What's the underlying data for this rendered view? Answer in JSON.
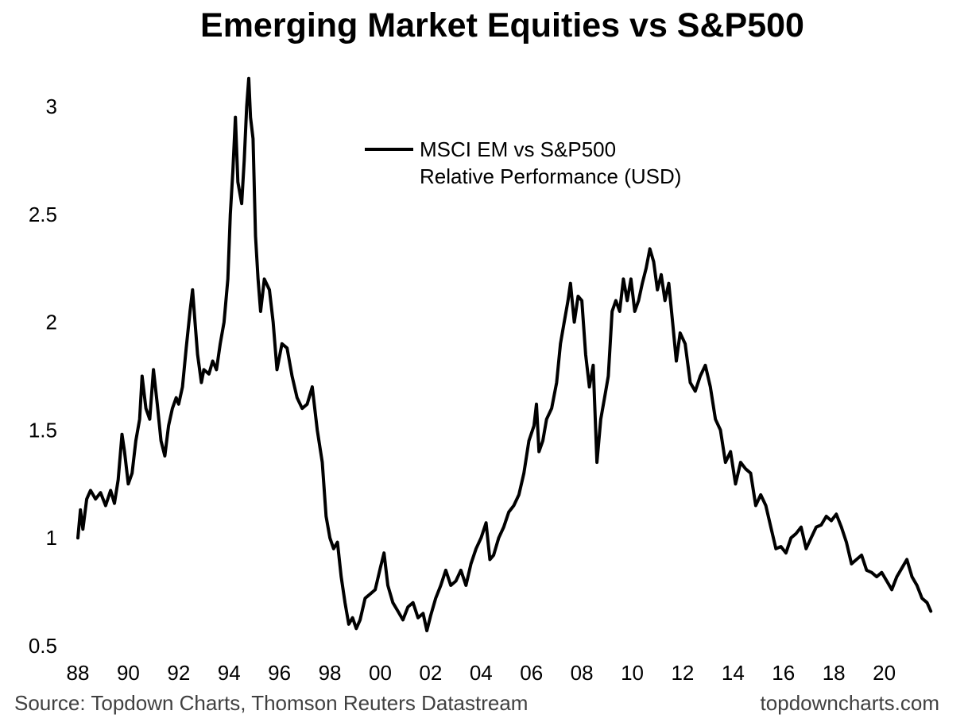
{
  "title": "Emerging Market Equities vs S&P500",
  "footer": {
    "source": "Source: Topdown Charts, Thomson Reuters Datastream",
    "site": "topdowncharts.com"
  },
  "chart_data": {
    "type": "line",
    "title": "Emerging Market Equities vs S&P500",
    "xlabel": "",
    "ylabel": "",
    "xlim": [
      1988,
      2022
    ],
    "ylim": [
      0.5,
      3.2
    ],
    "x_ticks": [
      "88",
      "90",
      "92",
      "94",
      "96",
      "98",
      "00",
      "02",
      "04",
      "06",
      "08",
      "10",
      "12",
      "14",
      "16",
      "18",
      "20"
    ],
    "y_ticks": [
      "0.5",
      "1",
      "1.5",
      "2",
      "2.5",
      "3"
    ],
    "grid": false,
    "legend": {
      "position": "top-center",
      "entries": [
        "MSCI EM vs S&P500",
        "Relative Performance (USD)"
      ]
    },
    "series": [
      {
        "name": "MSCI EM vs S&P500 Relative Performance (USD)",
        "color": "#000000",
        "points": [
          [
            1988.0,
            1.0
          ],
          [
            1988.1,
            1.13
          ],
          [
            1988.2,
            1.04
          ],
          [
            1988.35,
            1.18
          ],
          [
            1988.5,
            1.22
          ],
          [
            1988.7,
            1.18
          ],
          [
            1988.9,
            1.21
          ],
          [
            1989.1,
            1.15
          ],
          [
            1989.3,
            1.22
          ],
          [
            1989.45,
            1.16
          ],
          [
            1989.6,
            1.27
          ],
          [
            1989.75,
            1.48
          ],
          [
            1989.85,
            1.4
          ],
          [
            1990.0,
            1.25
          ],
          [
            1990.15,
            1.3
          ],
          [
            1990.3,
            1.45
          ],
          [
            1990.45,
            1.55
          ],
          [
            1990.55,
            1.75
          ],
          [
            1990.7,
            1.6
          ],
          [
            1990.85,
            1.55
          ],
          [
            1991.0,
            1.78
          ],
          [
            1991.15,
            1.62
          ],
          [
            1991.3,
            1.45
          ],
          [
            1991.45,
            1.38
          ],
          [
            1991.6,
            1.52
          ],
          [
            1991.75,
            1.6
          ],
          [
            1991.9,
            1.65
          ],
          [
            1992.0,
            1.62
          ],
          [
            1992.15,
            1.7
          ],
          [
            1992.3,
            1.88
          ],
          [
            1992.45,
            2.05
          ],
          [
            1992.55,
            2.15
          ],
          [
            1992.65,
            2.0
          ],
          [
            1992.75,
            1.85
          ],
          [
            1992.9,
            1.72
          ],
          [
            1993.0,
            1.78
          ],
          [
            1993.2,
            1.76
          ],
          [
            1993.35,
            1.82
          ],
          [
            1993.5,
            1.78
          ],
          [
            1993.65,
            1.9
          ],
          [
            1993.8,
            2.0
          ],
          [
            1993.95,
            2.2
          ],
          [
            1994.05,
            2.5
          ],
          [
            1994.15,
            2.7
          ],
          [
            1994.25,
            2.95
          ],
          [
            1994.35,
            2.65
          ],
          [
            1994.5,
            2.55
          ],
          [
            1994.6,
            2.75
          ],
          [
            1994.7,
            3.0
          ],
          [
            1994.78,
            3.13
          ],
          [
            1994.85,
            2.95
          ],
          [
            1994.95,
            2.85
          ],
          [
            1995.05,
            2.4
          ],
          [
            1995.15,
            2.2
          ],
          [
            1995.25,
            2.05
          ],
          [
            1995.4,
            2.2
          ],
          [
            1995.6,
            2.15
          ],
          [
            1995.75,
            2.0
          ],
          [
            1995.9,
            1.78
          ],
          [
            1996.1,
            1.9
          ],
          [
            1996.3,
            1.88
          ],
          [
            1996.5,
            1.75
          ],
          [
            1996.7,
            1.65
          ],
          [
            1996.9,
            1.6
          ],
          [
            1997.1,
            1.62
          ],
          [
            1997.3,
            1.7
          ],
          [
            1997.5,
            1.5
          ],
          [
            1997.7,
            1.35
          ],
          [
            1997.85,
            1.1
          ],
          [
            1998.0,
            1.0
          ],
          [
            1998.15,
            0.95
          ],
          [
            1998.3,
            0.98
          ],
          [
            1998.45,
            0.82
          ],
          [
            1998.6,
            0.7
          ],
          [
            1998.75,
            0.6
          ],
          [
            1998.9,
            0.63
          ],
          [
            1999.05,
            0.58
          ],
          [
            1999.2,
            0.62
          ],
          [
            1999.4,
            0.72
          ],
          [
            1999.6,
            0.74
          ],
          [
            1999.8,
            0.76
          ],
          [
            2000.0,
            0.86
          ],
          [
            2000.15,
            0.93
          ],
          [
            2000.3,
            0.78
          ],
          [
            2000.5,
            0.7
          ],
          [
            2000.7,
            0.66
          ],
          [
            2000.9,
            0.62
          ],
          [
            2001.1,
            0.68
          ],
          [
            2001.3,
            0.7
          ],
          [
            2001.5,
            0.63
          ],
          [
            2001.7,
            0.65
          ],
          [
            2001.85,
            0.57
          ],
          [
            2002.0,
            0.64
          ],
          [
            2002.2,
            0.72
          ],
          [
            2002.4,
            0.78
          ],
          [
            2002.6,
            0.85
          ],
          [
            2002.8,
            0.78
          ],
          [
            2003.0,
            0.8
          ],
          [
            2003.2,
            0.85
          ],
          [
            2003.4,
            0.78
          ],
          [
            2003.6,
            0.88
          ],
          [
            2003.8,
            0.95
          ],
          [
            2004.0,
            1.0
          ],
          [
            2004.2,
            1.07
          ],
          [
            2004.35,
            0.9
          ],
          [
            2004.5,
            0.92
          ],
          [
            2004.7,
            1.0
          ],
          [
            2004.9,
            1.05
          ],
          [
            2005.1,
            1.12
          ],
          [
            2005.3,
            1.15
          ],
          [
            2005.5,
            1.2
          ],
          [
            2005.7,
            1.3
          ],
          [
            2005.9,
            1.45
          ],
          [
            2006.1,
            1.52
          ],
          [
            2006.2,
            1.62
          ],
          [
            2006.3,
            1.4
          ],
          [
            2006.45,
            1.45
          ],
          [
            2006.6,
            1.55
          ],
          [
            2006.8,
            1.6
          ],
          [
            2007.0,
            1.72
          ],
          [
            2007.15,
            1.9
          ],
          [
            2007.3,
            2.0
          ],
          [
            2007.45,
            2.1
          ],
          [
            2007.55,
            2.18
          ],
          [
            2007.7,
            2.0
          ],
          [
            2007.85,
            2.12
          ],
          [
            2008.0,
            2.1
          ],
          [
            2008.15,
            1.85
          ],
          [
            2008.3,
            1.7
          ],
          [
            2008.45,
            1.8
          ],
          [
            2008.6,
            1.35
          ],
          [
            2008.75,
            1.55
          ],
          [
            2008.9,
            1.65
          ],
          [
            2009.05,
            1.75
          ],
          [
            2009.2,
            2.05
          ],
          [
            2009.35,
            2.1
          ],
          [
            2009.5,
            2.05
          ],
          [
            2009.65,
            2.2
          ],
          [
            2009.8,
            2.1
          ],
          [
            2009.95,
            2.2
          ],
          [
            2010.1,
            2.05
          ],
          [
            2010.25,
            2.1
          ],
          [
            2010.4,
            2.18
          ],
          [
            2010.55,
            2.25
          ],
          [
            2010.7,
            2.34
          ],
          [
            2010.85,
            2.28
          ],
          [
            2011.0,
            2.15
          ],
          [
            2011.15,
            2.22
          ],
          [
            2011.3,
            2.1
          ],
          [
            2011.45,
            2.18
          ],
          [
            2011.6,
            2.0
          ],
          [
            2011.75,
            1.82
          ],
          [
            2011.9,
            1.95
          ],
          [
            2012.1,
            1.9
          ],
          [
            2012.3,
            1.72
          ],
          [
            2012.5,
            1.68
          ],
          [
            2012.7,
            1.75
          ],
          [
            2012.9,
            1.8
          ],
          [
            2013.1,
            1.7
          ],
          [
            2013.3,
            1.55
          ],
          [
            2013.5,
            1.5
          ],
          [
            2013.7,
            1.35
          ],
          [
            2013.9,
            1.4
          ],
          [
            2014.1,
            1.25
          ],
          [
            2014.3,
            1.35
          ],
          [
            2014.5,
            1.32
          ],
          [
            2014.7,
            1.3
          ],
          [
            2014.9,
            1.15
          ],
          [
            2015.1,
            1.2
          ],
          [
            2015.3,
            1.15
          ],
          [
            2015.5,
            1.05
          ],
          [
            2015.7,
            0.95
          ],
          [
            2015.9,
            0.96
          ],
          [
            2016.1,
            0.93
          ],
          [
            2016.3,
            1.0
          ],
          [
            2016.5,
            1.02
          ],
          [
            2016.7,
            1.05
          ],
          [
            2016.9,
            0.95
          ],
          [
            2017.1,
            1.0
          ],
          [
            2017.3,
            1.05
          ],
          [
            2017.5,
            1.06
          ],
          [
            2017.7,
            1.1
          ],
          [
            2017.9,
            1.08
          ],
          [
            2018.1,
            1.11
          ],
          [
            2018.3,
            1.05
          ],
          [
            2018.5,
            0.98
          ],
          [
            2018.7,
            0.88
          ],
          [
            2018.9,
            0.9
          ],
          [
            2019.1,
            0.92
          ],
          [
            2019.3,
            0.85
          ],
          [
            2019.5,
            0.84
          ],
          [
            2019.7,
            0.82
          ],
          [
            2019.9,
            0.84
          ],
          [
            2020.1,
            0.8
          ],
          [
            2020.3,
            0.76
          ],
          [
            2020.5,
            0.82
          ],
          [
            2020.7,
            0.86
          ],
          [
            2020.9,
            0.9
          ],
          [
            2021.1,
            0.82
          ],
          [
            2021.3,
            0.78
          ],
          [
            2021.5,
            0.72
          ],
          [
            2021.7,
            0.7
          ],
          [
            2021.85,
            0.66
          ]
        ]
      }
    ]
  }
}
